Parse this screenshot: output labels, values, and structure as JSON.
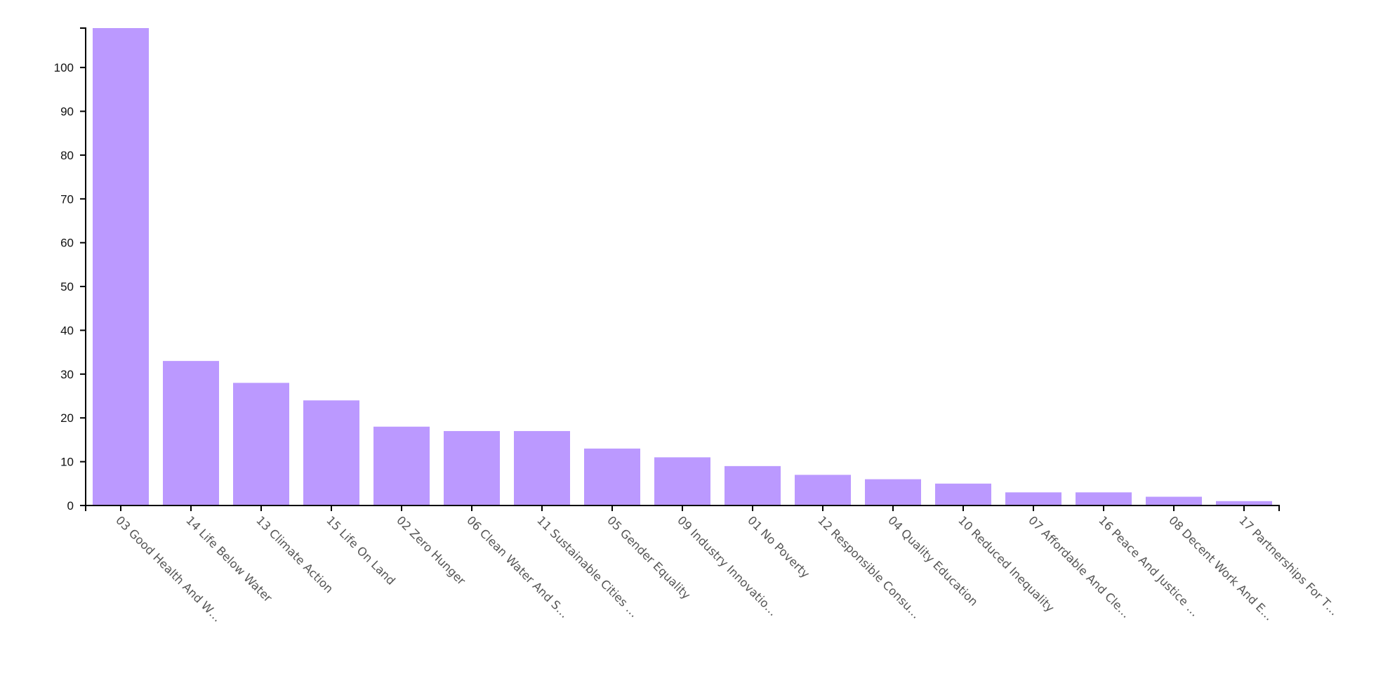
{
  "chart_data": {
    "type": "bar",
    "title": "",
    "xlabel": "",
    "ylabel": "",
    "ylim": [
      0,
      109
    ],
    "yticks": [
      0,
      10,
      20,
      30,
      40,
      50,
      60,
      70,
      80,
      90,
      100
    ],
    "grid": false,
    "bar_color": "#bb99ff",
    "categories": [
      "03 Good Health And W…",
      "14 Life Below Water",
      "13 Climate Action",
      "15 Life On Land",
      "02 Zero Hunger",
      "06 Clean Water And S…",
      "11 Sustainable Cities …",
      "05 Gender Equality",
      "09 Industry Innovatio…",
      "01 No Poverty",
      "12 Responsible Consu…",
      "04 Quality Education",
      "10 Reduced Inequality",
      "07 Affordable And Cle…",
      "16 Peace And Justice …",
      "08 Decent Work And E…",
      "17 Partnerships For T…"
    ],
    "values": [
      109,
      33,
      28,
      24,
      18,
      17,
      17,
      13,
      11,
      9,
      7,
      6,
      5,
      3,
      3,
      2,
      1
    ]
  }
}
